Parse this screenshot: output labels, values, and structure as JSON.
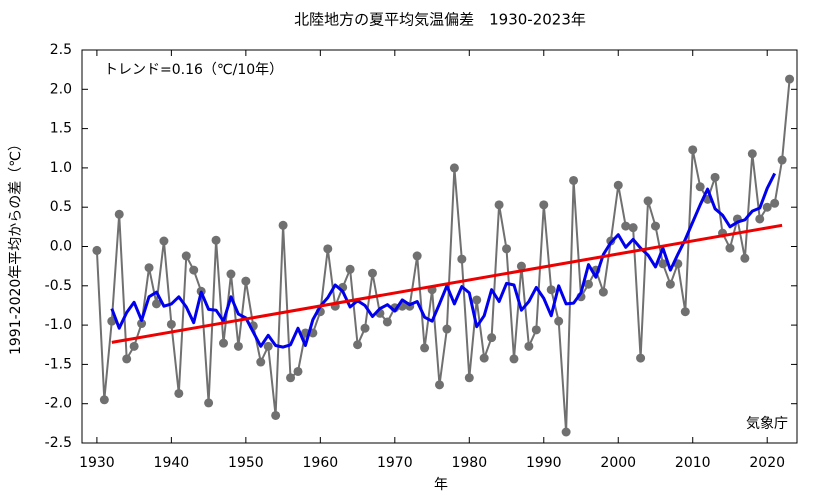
{
  "chart_data": {
    "type": "line",
    "title": "北陸地方の夏平均気温偏差　1930-2023年",
    "annotation": "トレンド=0.16（℃/10年）",
    "source": "気象庁",
    "xlabel": "年",
    "ylabel": "1991-2020年平均からの差（℃）",
    "x": [
      1930,
      1931,
      1932,
      1933,
      1934,
      1935,
      1936,
      1937,
      1938,
      1939,
      1940,
      1941,
      1942,
      1943,
      1944,
      1945,
      1946,
      1947,
      1948,
      1949,
      1950,
      1951,
      1952,
      1953,
      1954,
      1955,
      1956,
      1957,
      1958,
      1959,
      1960,
      1961,
      1962,
      1963,
      1964,
      1965,
      1966,
      1967,
      1968,
      1969,
      1970,
      1971,
      1972,
      1973,
      1974,
      1975,
      1976,
      1977,
      1978,
      1979,
      1980,
      1981,
      1982,
      1983,
      1984,
      1985,
      1986,
      1987,
      1988,
      1989,
      1990,
      1991,
      1992,
      1993,
      1994,
      1995,
      1996,
      1997,
      1998,
      1999,
      2000,
      2001,
      2002,
      2003,
      2004,
      2005,
      2006,
      2007,
      2008,
      2009,
      2010,
      2011,
      2012,
      2013,
      2014,
      2015,
      2016,
      2017,
      2018,
      2019,
      2020,
      2021,
      2022,
      2023
    ],
    "series": [
      {
        "color": "#707070",
        "markers": true,
        "values": [
          -0.05,
          -1.95,
          -0.95,
          0.41,
          -1.43,
          -1.27,
          -0.98,
          -0.27,
          -0.73,
          0.07,
          -0.99,
          -1.87,
          -0.12,
          -0.3,
          -0.57,
          -1.99,
          0.08,
          -1.23,
          -0.35,
          -1.27,
          -0.44,
          -1.01,
          -1.47,
          -1.27,
          -2.15,
          0.27,
          -1.67,
          -1.59,
          -1.1,
          -1.1,
          -0.83,
          -0.03,
          -0.76,
          -0.52,
          -0.29,
          -1.25,
          -1.04,
          -0.34,
          -0.85,
          -0.96,
          -0.78,
          -0.76,
          -0.76,
          -0.12,
          -1.29,
          -0.55,
          -1.76,
          -1.05,
          1.0,
          -0.16,
          -1.67,
          -0.68,
          -1.42,
          -1.16,
          0.53,
          -0.03,
          -1.43,
          -0.25,
          -1.27,
          -1.06,
          0.53,
          -0.55,
          -0.95,
          -2.36,
          0.84,
          -0.64,
          -0.48,
          -0.3,
          -0.58,
          0.07,
          0.78,
          0.26,
          0.24,
          -1.42,
          0.58,
          0.26,
          -0.22,
          -0.48,
          -0.22,
          -0.83,
          1.23,
          0.76,
          0.6,
          0.88,
          0.17,
          -0.02,
          0.35,
          -0.15,
          1.18,
          0.35,
          0.5,
          0.55,
          1.1,
          2.13
        ]
      },
      {
        "color": "#0000ee",
        "markers": false,
        "values": [
          null,
          null,
          -0.79,
          -1.04,
          -0.84,
          -0.71,
          -0.94,
          -0.64,
          -0.58,
          -0.76,
          -0.73,
          -0.64,
          -0.77,
          -0.97,
          -0.58,
          -0.8,
          -0.81,
          -0.95,
          -0.64,
          -0.86,
          -0.91,
          -1.09,
          -1.27,
          -1.13,
          -1.26,
          -1.28,
          -1.25,
          -1.04,
          -1.26,
          -0.93,
          -0.76,
          -0.65,
          -0.49,
          -0.57,
          -0.77,
          -0.69,
          -0.75,
          -0.89,
          -0.79,
          -0.74,
          -0.82,
          -0.68,
          -0.74,
          -0.7,
          -0.9,
          -0.95,
          -0.73,
          -0.5,
          -0.73,
          -0.51,
          -0.59,
          -1.02,
          -0.88,
          -0.55,
          -0.7,
          -0.47,
          -0.49,
          -0.81,
          -0.7,
          -0.52,
          -0.66,
          -0.88,
          -0.5,
          -0.73,
          -0.72,
          -0.59,
          -0.23,
          -0.39,
          -0.1,
          0.05,
          0.15,
          -0.01,
          0.09,
          -0.02,
          -0.11,
          -0.26,
          -0.02,
          -0.3,
          -0.1,
          0.09,
          0.31,
          0.53,
          0.73,
          0.48,
          0.4,
          0.25,
          0.31,
          0.34,
          0.45,
          0.49,
          0.74,
          0.93,
          null,
          null
        ]
      },
      {
        "color": "#ee0000",
        "markers": false,
        "x": [
          1932,
          2022
        ],
        "values": [
          -1.22,
          0.27
        ]
      }
    ],
    "xlim": [
      1928,
      2024
    ],
    "xticks": [
      1930,
      1940,
      1950,
      1960,
      1970,
      1980,
      1990,
      2000,
      2010,
      2020
    ],
    "ylim": [
      -2.5,
      2.5
    ],
    "yticks": [
      {
        "value": -2.5,
        "label": "-2.5"
      },
      {
        "value": -2,
        "label": "-2.0"
      },
      -1.5,
      {
        "value": -1,
        "label": "-1.0"
      },
      -0.5,
      {
        "value": 0,
        "label": "0.0"
      },
      0.5,
      {
        "value": 1,
        "label": "1.0"
      },
      1.5,
      {
        "value": 2,
        "label": "2.0"
      },
      2.5
    ]
  }
}
